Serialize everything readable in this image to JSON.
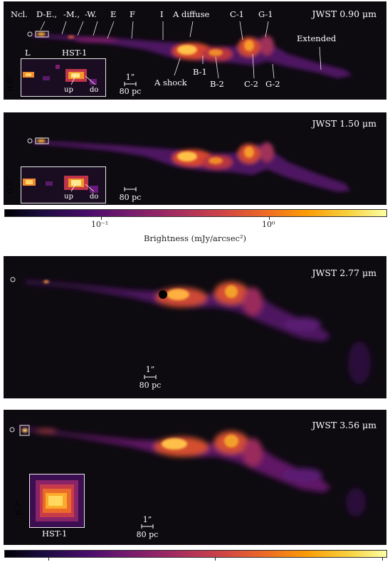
{
  "panels": [
    {
      "title": "JWST 0.90 μm"
    },
    {
      "title": "JWST 1.50 μm"
    },
    {
      "title": "JWST 2.77 μm"
    },
    {
      "title": "JWST 3.56 μm"
    }
  ],
  "knots": {
    "ncl": "Ncl.",
    "de": "D-E.,",
    "dm": "-M.,",
    "dw": "-W.",
    "e": "E",
    "f": "F",
    "i": "I",
    "a_diffuse": "A diffuse",
    "c1": "C-1",
    "g1": "G-1",
    "extended": "Extended",
    "a_shock": "A shock",
    "b1": "B-1",
    "b2": "B-2",
    "c2": "C-2",
    "g2": "G-2"
  },
  "insets": {
    "l": "L",
    "hst1": "HST-1",
    "up": "up",
    "do": "do",
    "size_05": "0.5″",
    "size_07": "0.7″"
  },
  "scalebar": {
    "angle": "1”",
    "length": "80 pc"
  },
  "colorbar": {
    "label": "Brightness (mJy/arcsec²)",
    "ticks": [
      "10⁻¹",
      "10⁰"
    ]
  },
  "colors": {
    "background": "#0d0a10",
    "jet_core": "#ffe070",
    "jet_mid": "#e8612c",
    "jet_faint": "#6a1a7a"
  }
}
